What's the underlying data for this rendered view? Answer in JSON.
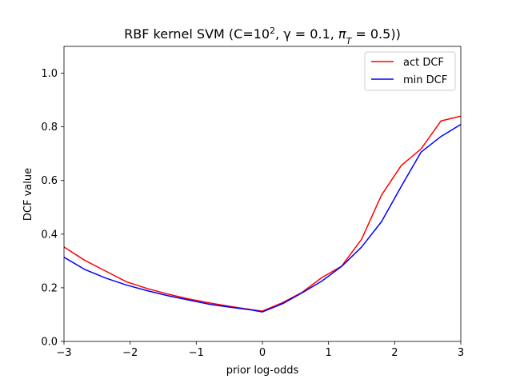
{
  "chart_data": {
    "type": "line",
    "title_parts": {
      "prefix": "RBF kernel SVM (C=10",
      "exponent": "2",
      "gamma_part": ", γ = 0.1, ",
      "pi_symbol": "π",
      "pi_subscript": "T",
      "suffix": " = 0.5))"
    },
    "xlabel": "prior log-odds",
    "ylabel": "DCF value",
    "xlim": [
      -3,
      3
    ],
    "ylim": [
      0,
      1.1
    ],
    "xticks": [
      -3,
      -2,
      -1,
      0,
      1,
      2,
      3
    ],
    "xtick_labels": [
      "−3",
      "−2",
      "−1",
      "0",
      "1",
      "2",
      "3"
    ],
    "yticks": [
      0.0,
      0.2,
      0.4,
      0.6,
      0.8,
      1.0
    ],
    "ytick_labels": [
      "0.0",
      "0.2",
      "0.4",
      "0.6",
      "0.8",
      "1.0"
    ],
    "grid": false,
    "legend_position": "top-right",
    "x": [
      -3.0,
      -2.684,
      -2.368,
      -2.053,
      -1.737,
      -1.421,
      -1.105,
      -0.789,
      -0.474,
      -0.158,
      0.0,
      0.3,
      0.6,
      0.9,
      1.2,
      1.5,
      1.8,
      2.1,
      2.4,
      2.7,
      3.0
    ],
    "series": [
      {
        "name": "act DCF",
        "color": "#ff0000",
        "values": [
          0.352,
          0.302,
          0.262,
          0.222,
          0.197,
          0.176,
          0.158,
          0.143,
          0.13,
          0.118,
          0.113,
          0.144,
          0.183,
          0.238,
          0.281,
          0.381,
          0.545,
          0.656,
          0.718,
          0.822,
          0.84
        ]
      },
      {
        "name": "min DCF",
        "color": "#0000ff",
        "values": [
          0.314,
          0.268,
          0.236,
          0.21,
          0.189,
          0.17,
          0.154,
          0.138,
          0.127,
          0.117,
          0.11,
          0.14,
          0.181,
          0.225,
          0.28,
          0.352,
          0.446,
          0.578,
          0.706,
          0.764,
          0.809
        ]
      }
    ]
  }
}
